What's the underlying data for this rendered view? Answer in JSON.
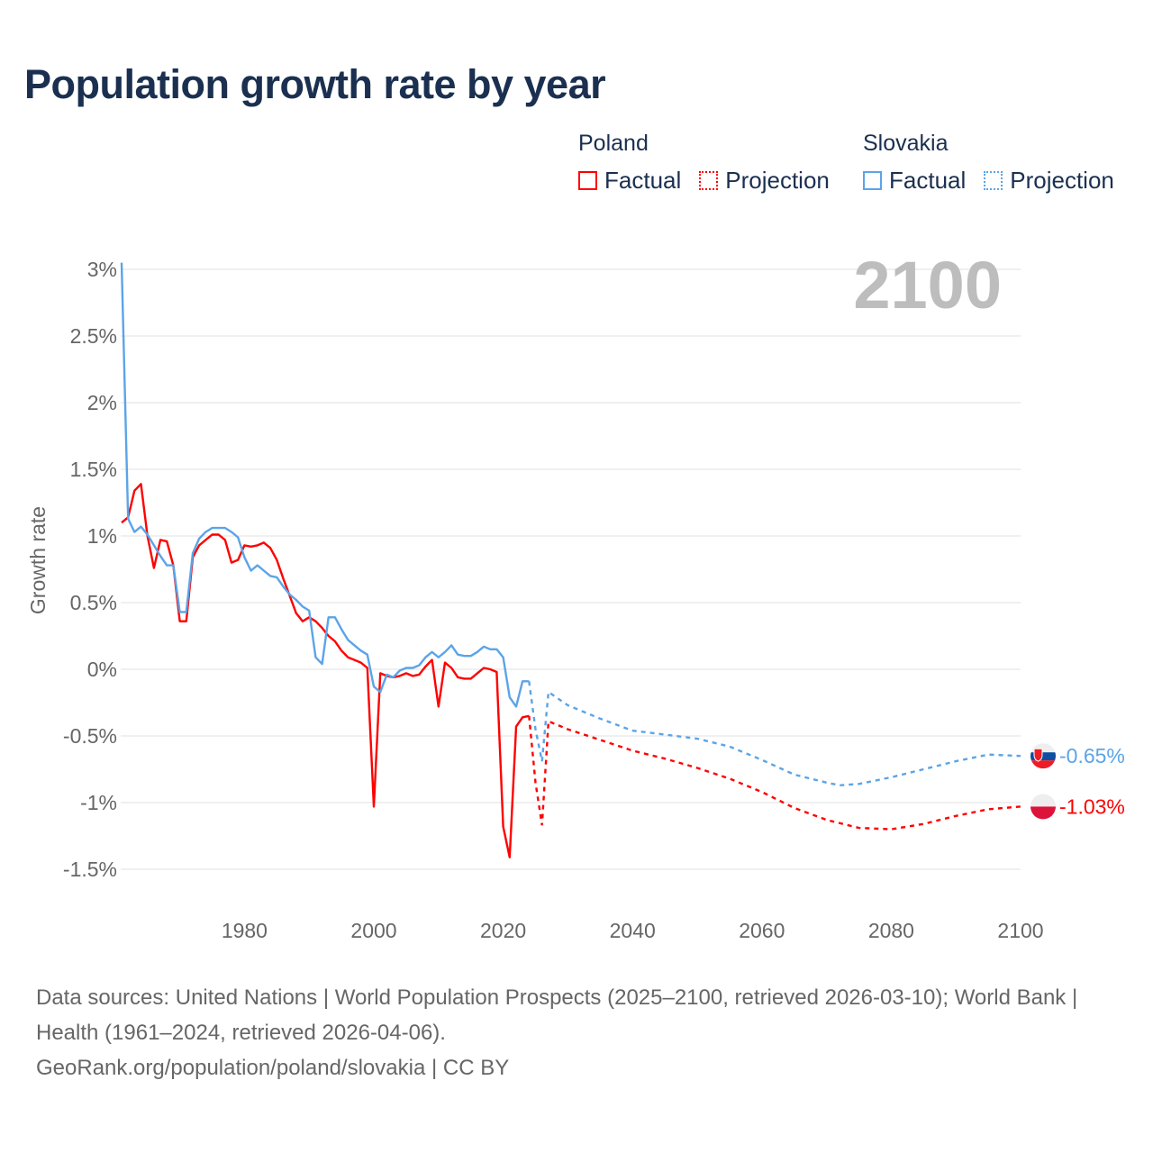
{
  "title": "Population growth rate by year",
  "legend": {
    "groups": [
      {
        "name": "Poland",
        "color": "#ff0000",
        "factual": "Factual",
        "projection": "Projection"
      },
      {
        "name": "Slovakia",
        "color": "#5ba4e8",
        "factual": "Factual",
        "projection": "Projection"
      }
    ]
  },
  "year_label": "2100",
  "footer": {
    "sources": "Data sources: United Nations | World Population Prospects (2025–2100, retrieved 2026-03-10); World Bank | Health (1961–2024, retrieved 2026-04-06).",
    "credit": "GeoRank.org/population/poland/slovakia | CC BY"
  },
  "chart_data": {
    "type": "line",
    "title": "Population growth rate by year",
    "xlabel": "",
    "ylabel": "Growth rate",
    "xlim": [
      1961,
      2100
    ],
    "ylim": [
      -1.5,
      3
    ],
    "grid": true,
    "legend_position": "top-right",
    "x_ticks": [
      1980,
      2000,
      2020,
      2040,
      2060,
      2080,
      2100
    ],
    "y_ticks": [
      3,
      2.5,
      2,
      1.5,
      1,
      0.5,
      0,
      -0.5,
      -1,
      -1.5
    ],
    "y_tick_labels": [
      "3%",
      "2.5%",
      "2%",
      "1.5%",
      "1%",
      "0.5%",
      "0%",
      "-0.5%",
      "-1%",
      "-1.5%"
    ],
    "factual_start_year": 1961,
    "series": [
      {
        "name": "Poland",
        "color": "#ff0000",
        "end_label": "-1.03%",
        "factual": [
          1.1,
          1.14,
          1.34,
          1.39,
          1.0,
          0.76,
          0.97,
          0.96,
          0.78,
          0.36,
          0.36,
          0.84,
          0.93,
          0.97,
          1.01,
          1.01,
          0.97,
          0.8,
          0.82,
          0.93,
          0.92,
          0.93,
          0.95,
          0.91,
          0.82,
          0.68,
          0.55,
          0.42,
          0.36,
          0.39,
          0.36,
          0.31,
          0.25,
          0.21,
          0.14,
          0.09,
          0.07,
          0.05,
          0.01,
          -1.03,
          -0.03,
          -0.05,
          -0.06,
          -0.05,
          -0.03,
          -0.05,
          -0.04,
          0.02,
          0.07,
          -0.28,
          0.05,
          0.01,
          -0.06,
          -0.07,
          -0.07,
          -0.03,
          0.01,
          0.0,
          -0.02,
          -1.18,
          -1.41,
          -0.43,
          -0.36,
          -0.35
        ],
        "projection": {
          "x": [
            2024,
            2025,
            2026,
            2027,
            2030,
            2035,
            2040,
            2045,
            2050,
            2055,
            2060,
            2065,
            2070,
            2075,
            2080,
            2085,
            2090,
            2095,
            2100
          ],
          "values": [
            -0.35,
            -0.85,
            -1.17,
            -0.39,
            -0.45,
            -0.53,
            -0.61,
            -0.67,
            -0.74,
            -0.82,
            -0.92,
            -1.04,
            -1.13,
            -1.19,
            -1.2,
            -1.16,
            -1.1,
            -1.05,
            -1.03
          ]
        }
      },
      {
        "name": "Slovakia",
        "color": "#5ba4e8",
        "end_label": "-0.65%",
        "factual": [
          3.05,
          1.13,
          1.03,
          1.07,
          1.01,
          0.93,
          0.85,
          0.78,
          0.78,
          0.43,
          0.43,
          0.87,
          0.98,
          1.03,
          1.06,
          1.06,
          1.06,
          1.03,
          0.99,
          0.84,
          0.74,
          0.78,
          0.74,
          0.7,
          0.69,
          0.62,
          0.56,
          0.52,
          0.47,
          0.44,
          0.09,
          0.04,
          0.39,
          0.39,
          0.3,
          0.22,
          0.18,
          0.14,
          0.11,
          -0.13,
          -0.17,
          -0.04,
          -0.06,
          -0.01,
          0.01,
          0.01,
          0.03,
          0.09,
          0.13,
          0.09,
          0.13,
          0.18,
          0.11,
          0.1,
          0.1,
          0.13,
          0.17,
          0.15,
          0.15,
          0.09,
          -0.21,
          -0.28,
          -0.09,
          -0.09
        ],
        "projection": {
          "x": [
            2024,
            2025,
            2026,
            2027,
            2030,
            2035,
            2040,
            2045,
            2050,
            2055,
            2060,
            2065,
            2070,
            2072,
            2075,
            2080,
            2085,
            2090,
            2095,
            2100
          ],
          "values": [
            -0.09,
            -0.45,
            -0.69,
            -0.17,
            -0.27,
            -0.37,
            -0.46,
            -0.49,
            -0.52,
            -0.58,
            -0.68,
            -0.79,
            -0.85,
            -0.87,
            -0.86,
            -0.81,
            -0.75,
            -0.69,
            -0.64,
            -0.65
          ]
        }
      }
    ]
  }
}
